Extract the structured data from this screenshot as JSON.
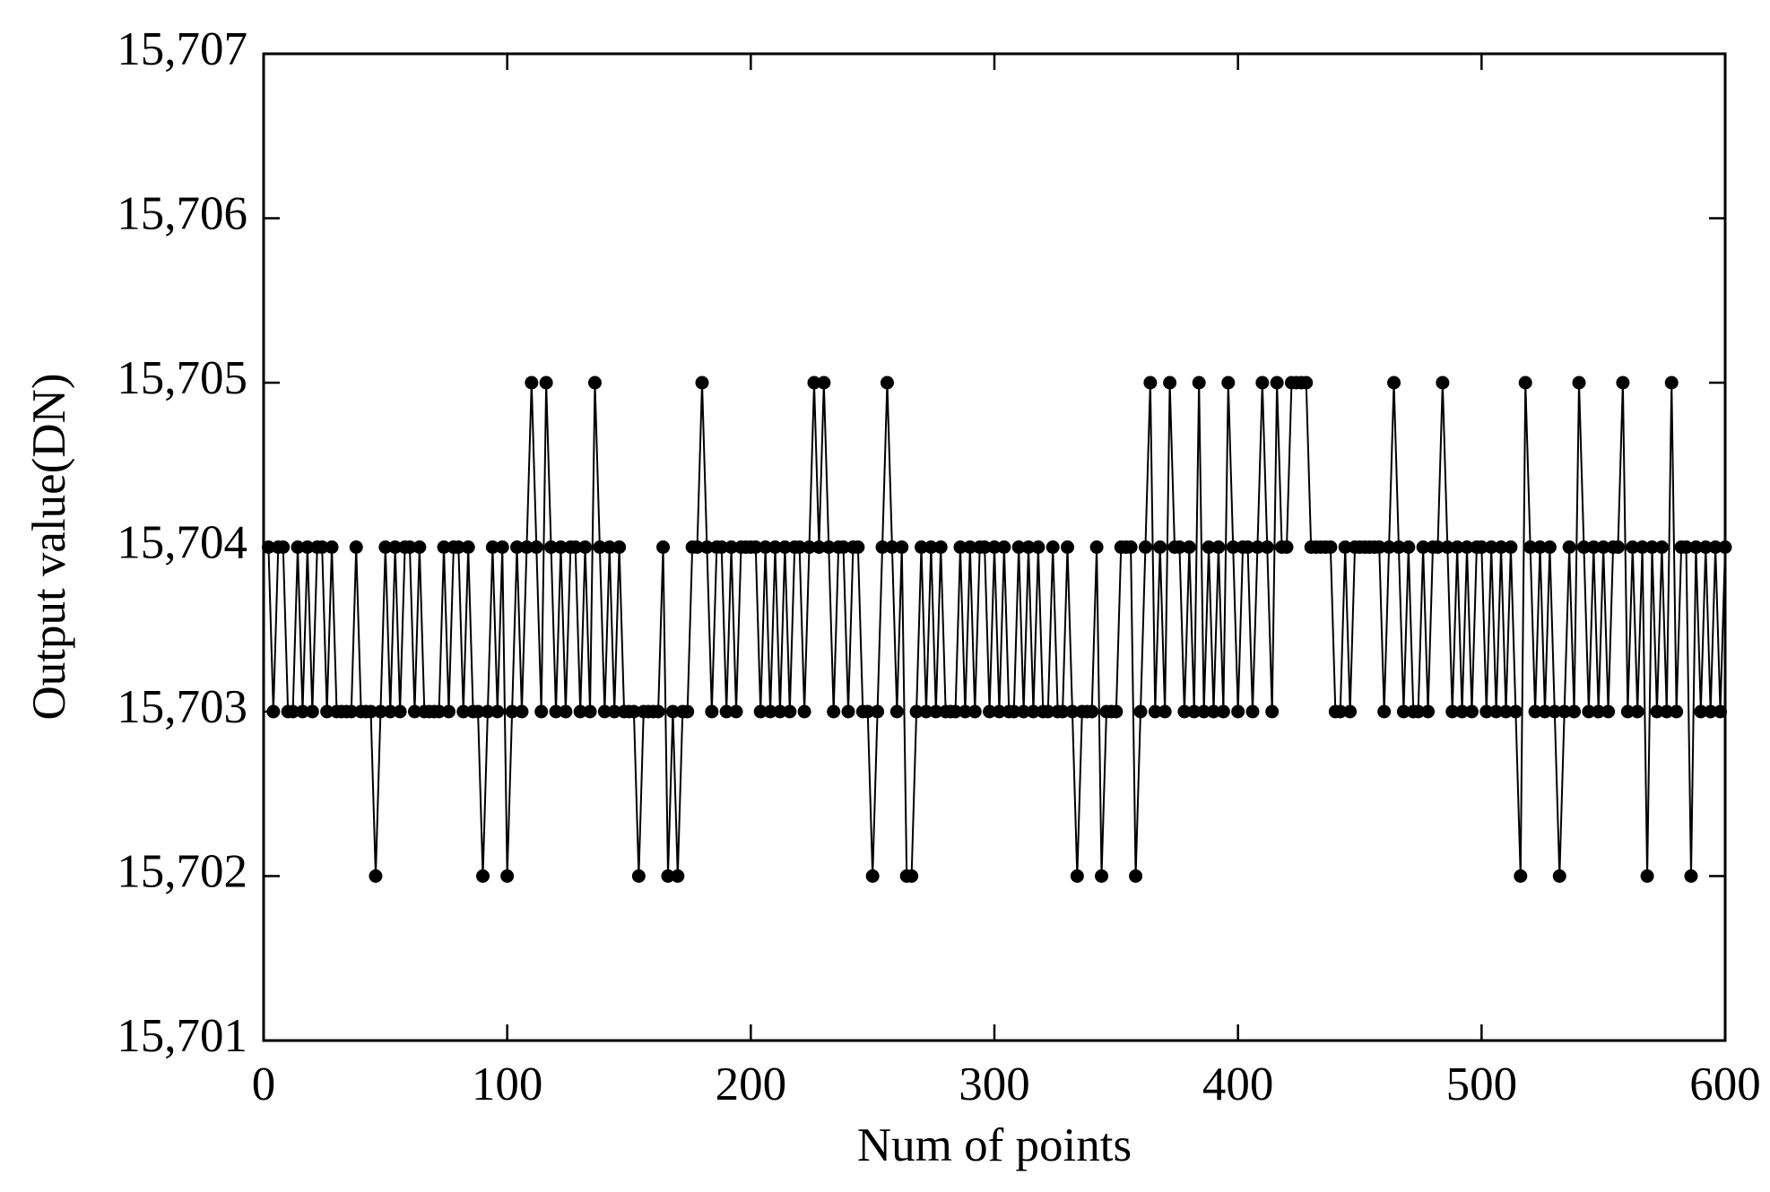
{
  "chart_data": {
    "type": "line",
    "x_label": "Num of points",
    "y_label": "Output value(DN)",
    "color": "#000000",
    "markers": true,
    "xlim": [
      0,
      600
    ],
    "xticks": [
      0,
      100,
      200,
      300,
      400,
      500,
      600
    ],
    "ylim": [
      15701,
      15707
    ],
    "yticks": [
      {
        "value": 15701,
        "label": "15,701"
      },
      {
        "value": 15702,
        "label": "15,702"
      },
      {
        "value": 15703,
        "label": "15,703"
      },
      {
        "value": 15704,
        "label": "15,704"
      },
      {
        "value": 15705,
        "label": "15,705"
      },
      {
        "value": 15706,
        "label": "15,706"
      },
      {
        "value": 15707,
        "label": "15,707"
      }
    ],
    "x": [
      2,
      4,
      6,
      8,
      10,
      12,
      14,
      16,
      18,
      20,
      22,
      24,
      26,
      28,
      30,
      32,
      34,
      36,
      38,
      40,
      42,
      44,
      46,
      48,
      50,
      52,
      54,
      56,
      58,
      60,
      62,
      64,
      66,
      68,
      70,
      72,
      74,
      76,
      78,
      80,
      82,
      84,
      86,
      88,
      90,
      92,
      94,
      96,
      98,
      100,
      102,
      104,
      106,
      108,
      110,
      112,
      114,
      116,
      118,
      120,
      122,
      124,
      126,
      128,
      130,
      132,
      134,
      136,
      138,
      140,
      142,
      144,
      146,
      148,
      150,
      152,
      154,
      156,
      158,
      160,
      162,
      164,
      166,
      168,
      170,
      172,
      174,
      176,
      178,
      180,
      182,
      184,
      186,
      188,
      190,
      192,
      194,
      196,
      198,
      200,
      202,
      204,
      206,
      208,
      210,
      212,
      214,
      216,
      218,
      220,
      222,
      224,
      226,
      228,
      230,
      232,
      234,
      236,
      238,
      240,
      242,
      244,
      246,
      248,
      250,
      252,
      254,
      256,
      258,
      260,
      262,
      264,
      266,
      268,
      270,
      272,
      274,
      276,
      278,
      280,
      282,
      284,
      286,
      288,
      290,
      292,
      294,
      296,
      298,
      300,
      302,
      304,
      306,
      308,
      310,
      312,
      314,
      316,
      318,
      320,
      322,
      324,
      326,
      328,
      330,
      332,
      334,
      336,
      338,
      340,
      342,
      344,
      346,
      348,
      350,
      352,
      354,
      356,
      358,
      360,
      362,
      364,
      366,
      368,
      370,
      372,
      374,
      376,
      378,
      380,
      382,
      384,
      386,
      388,
      390,
      392,
      394,
      396,
      398,
      400,
      402,
      404,
      406,
      408,
      410,
      412,
      414,
      416,
      418,
      420,
      422,
      424,
      426,
      428,
      430,
      432,
      434,
      436,
      438,
      440,
      442,
      444,
      446,
      448,
      450,
      452,
      454,
      456,
      458,
      460,
      462,
      464,
      466,
      468,
      470,
      472,
      474,
      476,
      478,
      480,
      482,
      484,
      486,
      488,
      490,
      492,
      494,
      496,
      498,
      500,
      502,
      504,
      506,
      508,
      510,
      512,
      514,
      516,
      518,
      520,
      522,
      524,
      526,
      528,
      530,
      532,
      534,
      536,
      538,
      540,
      542,
      544,
      546,
      548,
      550,
      552,
      554,
      556,
      558,
      560,
      562,
      564,
      566,
      568,
      570,
      572,
      574,
      576,
      578,
      580,
      582,
      584,
      586,
      588,
      590,
      592,
      594,
      596,
      598,
      600
    ],
    "values": [
      15704,
      15703,
      15704,
      15704,
      15703,
      15703,
      15704,
      15703,
      15704,
      15703,
      15704,
      15704,
      15703,
      15704,
      15703,
      15703,
      15703,
      15703,
      15704,
      15703,
      15703,
      15703,
      15702,
      15703,
      15704,
      15703,
      15704,
      15703,
      15704,
      15704,
      15703,
      15704,
      15703,
      15703,
      15703,
      15703,
      15704,
      15703,
      15704,
      15704,
      15703,
      15704,
      15703,
      15703,
      15702,
      15703,
      15704,
      15703,
      15704,
      15702,
      15703,
      15704,
      15703,
      15704,
      15705,
      15704,
      15703,
      15705,
      15704,
      15703,
      15704,
      15703,
      15704,
      15704,
      15703,
      15704,
      15703,
      15705,
      15704,
      15703,
      15704,
      15703,
      15704,
      15703,
      15703,
      15703,
      15702,
      15703,
      15703,
      15703,
      15703,
      15704,
      15702,
      15703,
      15702,
      15703,
      15703,
      15704,
      15704,
      15705,
      15704,
      15703,
      15704,
      15704,
      15703,
      15704,
      15703,
      15704,
      15704,
      15704,
      15704,
      15703,
      15704,
      15703,
      15704,
      15703,
      15704,
      15703,
      15704,
      15704,
      15703,
      15704,
      15705,
      15704,
      15705,
      15704,
      15703,
      15704,
      15704,
      15703,
      15704,
      15704,
      15703,
      15703,
      15702,
      15703,
      15704,
      15705,
      15704,
      15703,
      15704,
      15702,
      15702,
      15703,
      15704,
      15703,
      15704,
      15703,
      15704,
      15703,
      15703,
      15703,
      15704,
      15703,
      15704,
      15703,
      15704,
      15704,
      15703,
      15704,
      15703,
      15704,
      15703,
      15703,
      15704,
      15703,
      15704,
      15703,
      15704,
      15703,
      15703,
      15704,
      15703,
      15703,
      15704,
      15703,
      15702,
      15703,
      15703,
      15703,
      15704,
      15702,
      15703,
      15703,
      15703,
      15704,
      15704,
      15704,
      15702,
      15703,
      15704,
      15705,
      15703,
      15704,
      15703,
      15705,
      15704,
      15704,
      15703,
      15704,
      15703,
      15705,
      15703,
      15704,
      15703,
      15704,
      15703,
      15705,
      15704,
      15703,
      15704,
      15704,
      15703,
      15704,
      15705,
      15704,
      15703,
      15705,
      15704,
      15704,
      15705,
      15705,
      15705,
      15705,
      15704,
      15704,
      15704,
      15704,
      15704,
      15703,
      15703,
      15704,
      15703,
      15704,
      15704,
      15704,
      15704,
      15704,
      15704,
      15703,
      15704,
      15705,
      15704,
      15703,
      15704,
      15703,
      15703,
      15704,
      15703,
      15704,
      15704,
      15705,
      15704,
      15703,
      15704,
      15703,
      15704,
      15703,
      15704,
      15704,
      15703,
      15704,
      15703,
      15704,
      15703,
      15704,
      15703,
      15702,
      15705,
      15704,
      15703,
      15704,
      15703,
      15704,
      15703,
      15702,
      15703,
      15704,
      15703,
      15705,
      15704,
      15703,
      15704,
      15703,
      15704,
      15703,
      15704,
      15704,
      15705,
      15703,
      15704,
      15703,
      15704,
      15702,
      15704,
      15703,
      15704,
      15703,
      15705,
      15703,
      15704,
      15704,
      15702,
      15704,
      15703,
      15704,
      15703,
      15704,
      15703,
      15704
    ]
  }
}
